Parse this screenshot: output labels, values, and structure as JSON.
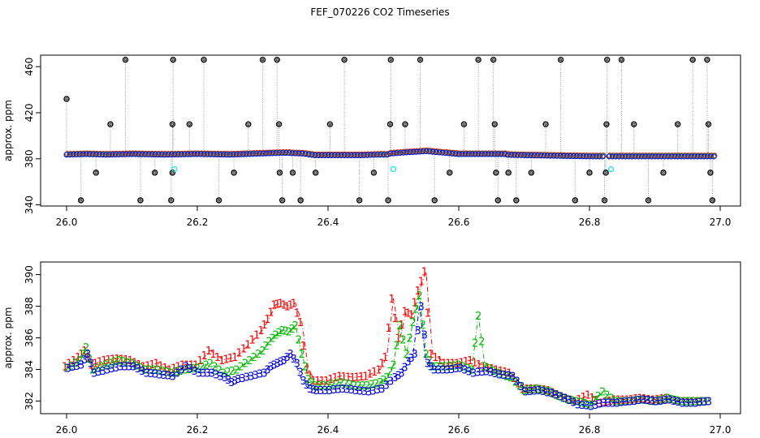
{
  "title": "FEF_070226  CO2 Timeseries",
  "chart_data": [
    {
      "panel": "top",
      "type": "scatter",
      "title": "",
      "xlabel": "",
      "ylabel": "approx. ppm",
      "xlim": [
        26.0,
        27.0
      ],
      "ylim": [
        339,
        470
      ],
      "x_ticks": [
        "26.0",
        "26.2",
        "26.4",
        "26.6",
        "26.8",
        "27.0"
      ],
      "y_ticks": [
        "340",
        "380",
        "420",
        "460"
      ],
      "baseline_segments": [
        {
          "x": [
            26.0,
            26.03,
            26.06,
            26.1,
            26.15,
            26.2,
            26.25,
            26.3,
            26.33
          ],
          "y": [
            383.5,
            384,
            383.5,
            384,
            383.5,
            384,
            383.5,
            384.5,
            385
          ]
        },
        {
          "x": [
            26.335,
            26.36,
            26.38,
            26.45,
            26.48
          ],
          "y": [
            385,
            384.5,
            383,
            383,
            383.5
          ]
        },
        {
          "x": [
            26.485,
            26.52,
            26.55,
            26.6,
            26.66
          ],
          "y": [
            384,
            385.5,
            386.5,
            384,
            384
          ]
        },
        {
          "x": [
            26.665,
            26.7,
            26.75,
            26.8,
            26.82
          ],
          "y": [
            383.5,
            383,
            382.5,
            382,
            382
          ]
        },
        {
          "x": [
            26.83,
            26.88,
            26.93,
            26.99
          ],
          "y": [
            382,
            382,
            382,
            382
          ]
        }
      ],
      "spikes": [
        {
          "x": 26.0,
          "y": 432
        },
        {
          "x": 26.022,
          "y": 344
        },
        {
          "x": 26.045,
          "y": 368
        },
        {
          "x": 26.067,
          "y": 410
        },
        {
          "x": 26.09,
          "y": 466
        },
        {
          "x": 26.113,
          "y": 344
        },
        {
          "x": 26.135,
          "y": 368
        },
        {
          "x": 26.16,
          "y": 344
        },
        {
          "x": 26.162,
          "y": 410
        },
        {
          "x": 26.163,
          "y": 466
        },
        {
          "x": 26.162,
          "y": 368
        },
        {
          "x": 26.188,
          "y": 410
        },
        {
          "x": 26.21,
          "y": 466
        },
        {
          "x": 26.233,
          "y": 344
        },
        {
          "x": 26.256,
          "y": 368
        },
        {
          "x": 26.278,
          "y": 410
        },
        {
          "x": 26.3,
          "y": 466
        },
        {
          "x": 26.322,
          "y": 466
        },
        {
          "x": 26.325,
          "y": 410
        },
        {
          "x": 26.326,
          "y": 368
        },
        {
          "x": 26.33,
          "y": 344
        },
        {
          "x": 26.346,
          "y": 368
        },
        {
          "x": 26.358,
          "y": 344
        },
        {
          "x": 26.381,
          "y": 368
        },
        {
          "x": 26.403,
          "y": 410
        },
        {
          "x": 26.425,
          "y": 466
        },
        {
          "x": 26.448,
          "y": 344
        },
        {
          "x": 26.47,
          "y": 368
        },
        {
          "x": 26.492,
          "y": 344
        },
        {
          "x": 26.495,
          "y": 410
        },
        {
          "x": 26.496,
          "y": 466
        },
        {
          "x": 26.518,
          "y": 410
        },
        {
          "x": 26.541,
          "y": 466
        },
        {
          "x": 26.563,
          "y": 344
        },
        {
          "x": 26.586,
          "y": 368
        },
        {
          "x": 26.608,
          "y": 410
        },
        {
          "x": 26.63,
          "y": 466
        },
        {
          "x": 26.653,
          "y": 466
        },
        {
          "x": 26.655,
          "y": 410
        },
        {
          "x": 26.657,
          "y": 368
        },
        {
          "x": 26.66,
          "y": 344
        },
        {
          "x": 26.676,
          "y": 368
        },
        {
          "x": 26.688,
          "y": 344
        },
        {
          "x": 26.711,
          "y": 368
        },
        {
          "x": 26.733,
          "y": 410
        },
        {
          "x": 26.756,
          "y": 466
        },
        {
          "x": 26.778,
          "y": 344
        },
        {
          "x": 26.8,
          "y": 368
        },
        {
          "x": 26.823,
          "y": 344
        },
        {
          "x": 26.825,
          "y": 368
        },
        {
          "x": 26.826,
          "y": 410
        },
        {
          "x": 26.827,
          "y": 466
        },
        {
          "x": 26.849,
          "y": 466
        },
        {
          "x": 26.868,
          "y": 410
        },
        {
          "x": 26.89,
          "y": 344
        },
        {
          "x": 26.913,
          "y": 368
        },
        {
          "x": 26.935,
          "y": 410
        },
        {
          "x": 26.958,
          "y": 466
        },
        {
          "x": 26.98,
          "y": 466
        },
        {
          "x": 26.982,
          "y": 410
        },
        {
          "x": 26.985,
          "y": 368
        },
        {
          "x": 26.988,
          "y": 344
        }
      ],
      "cyan_points": [
        {
          "x": 26.165,
          "y": 371
        },
        {
          "x": 26.5,
          "y": 371
        },
        {
          "x": 26.833,
          "y": 371
        }
      ],
      "colors": {
        "series1": "#ff0000",
        "series2": "#00cc00",
        "series3": "#0000ff",
        "spike": "#000000",
        "cyan": "#00e5e5",
        "vline": "#9a9a9a"
      }
    },
    {
      "panel": "bottom",
      "type": "line",
      "title": "",
      "xlabel": "",
      "ylabel": "approx. ppm",
      "xlim": [
        26.0,
        27.0
      ],
      "ylim": [
        381.2,
        390.8
      ],
      "x_ticks": [
        "26.0",
        "26.2",
        "26.4",
        "26.6",
        "26.8",
        "27.0"
      ],
      "y_ticks": [
        "382",
        "384",
        "386",
        "388",
        "390"
      ],
      "series": [
        {
          "name": "1",
          "color": "#ff0000",
          "x": [
            26.0,
            26.02,
            26.03,
            26.04,
            26.06,
            26.08,
            26.1,
            26.12,
            26.14,
            26.16,
            26.18,
            26.2,
            26.22,
            26.24,
            26.26,
            26.28,
            26.3,
            26.31,
            26.32,
            26.33,
            26.34,
            26.35,
            26.36,
            26.37,
            26.38,
            26.4,
            26.42,
            26.44,
            26.46,
            26.48,
            26.49,
            26.5,
            26.51,
            26.52,
            26.53,
            26.54,
            26.55,
            26.56,
            26.58,
            26.6,
            26.62,
            26.64,
            26.66,
            26.68,
            26.7,
            26.72,
            26.74,
            26.76,
            26.78,
            26.8,
            26.82,
            26.84,
            26.86,
            26.88,
            26.9,
            26.92,
            26.94,
            26.96,
            26.98
          ],
          "y": [
            384.2,
            384.8,
            385.2,
            384.3,
            384.6,
            384.7,
            384.6,
            384.2,
            384.4,
            384.0,
            384.3,
            384.3,
            385.2,
            384.6,
            384.8,
            385.6,
            386.5,
            387.2,
            388.1,
            388.2,
            388.0,
            388.2,
            387.0,
            384.0,
            383.3,
            383.3,
            383.6,
            383.5,
            383.6,
            384.0,
            384.8,
            388.5,
            386.0,
            387.7,
            387.5,
            389.0,
            390.2,
            385.0,
            384.4,
            384.4,
            384.6,
            384.2,
            384.0,
            383.8,
            382.8,
            382.8,
            382.7,
            382.3,
            382.0,
            382.4,
            381.9,
            382.1,
            382.1,
            382.2,
            382.1,
            382.2,
            382.0,
            382.0,
            382.0
          ]
        },
        {
          "name": "2",
          "color": "#00bb00",
          "x": [
            26.0,
            26.02,
            26.03,
            26.04,
            26.06,
            26.08,
            26.1,
            26.12,
            26.14,
            26.16,
            26.18,
            26.2,
            26.22,
            26.24,
            26.26,
            26.28,
            26.3,
            26.31,
            26.32,
            26.33,
            26.34,
            26.35,
            26.36,
            26.37,
            26.38,
            26.4,
            26.42,
            26.44,
            26.46,
            26.48,
            26.49,
            26.5,
            26.51,
            26.52,
            26.53,
            26.54,
            26.55,
            26.56,
            26.58,
            26.6,
            26.62,
            26.63,
            26.64,
            26.66,
            26.68,
            26.7,
            26.72,
            26.74,
            26.76,
            26.78,
            26.8,
            26.82,
            26.84,
            26.86,
            26.88,
            26.9,
            26.92,
            26.94,
            26.96,
            26.98
          ],
          "y": [
            384.1,
            384.6,
            385.4,
            384.0,
            384.3,
            384.6,
            384.4,
            384.0,
            384.0,
            383.8,
            384.0,
            384.1,
            384.4,
            383.8,
            384.0,
            384.6,
            385.2,
            385.8,
            386.2,
            386.5,
            386.4,
            386.8,
            385.0,
            383.4,
            383.0,
            383.0,
            383.2,
            383.0,
            383.0,
            383.2,
            383.5,
            384.3,
            386.8,
            385.0,
            387.0,
            388.7,
            385.0,
            384.2,
            384.2,
            384.3,
            384.0,
            387.4,
            384.2,
            383.8,
            383.5,
            382.7,
            382.8,
            382.6,
            382.2,
            382.0,
            381.8,
            382.6,
            382.0,
            382.0,
            382.1,
            382.0,
            382.2,
            382.0,
            382.0,
            382.0
          ]
        },
        {
          "name": "3",
          "color": "#0000dd",
          "x": [
            26.0,
            26.02,
            26.03,
            26.04,
            26.06,
            26.08,
            26.1,
            26.12,
            26.14,
            26.16,
            26.18,
            26.2,
            26.22,
            26.24,
            26.25,
            26.26,
            26.28,
            26.3,
            26.31,
            26.32,
            26.33,
            26.34,
            26.35,
            26.36,
            26.37,
            26.38,
            26.4,
            26.42,
            26.44,
            26.46,
            26.48,
            26.5,
            26.51,
            26.52,
            26.53,
            26.54,
            26.55,
            26.56,
            26.58,
            26.6,
            26.62,
            26.64,
            26.66,
            26.68,
            26.7,
            26.72,
            26.74,
            26.76,
            26.78,
            26.8,
            26.82,
            26.84,
            26.86,
            26.88,
            26.9,
            26.92,
            26.94,
            26.96,
            26.98
          ],
          "y": [
            384.1,
            384.3,
            385.0,
            383.8,
            384.0,
            384.2,
            384.2,
            383.8,
            383.7,
            383.6,
            384.2,
            383.8,
            383.8,
            383.5,
            383.2,
            383.4,
            383.6,
            383.8,
            384.2,
            384.4,
            384.6,
            385.0,
            384.4,
            383.3,
            382.8,
            382.7,
            382.7,
            382.8,
            382.7,
            382.6,
            382.8,
            383.5,
            383.8,
            384.5,
            385.0,
            388.0,
            384.4,
            384.0,
            384.0,
            384.1,
            383.8,
            383.9,
            383.7,
            383.6,
            382.6,
            382.7,
            382.5,
            382.2,
            381.8,
            381.7,
            381.9,
            381.9,
            382.0,
            382.1,
            382.0,
            382.1,
            381.9,
            381.9,
            382.0
          ]
        }
      ]
    }
  ]
}
